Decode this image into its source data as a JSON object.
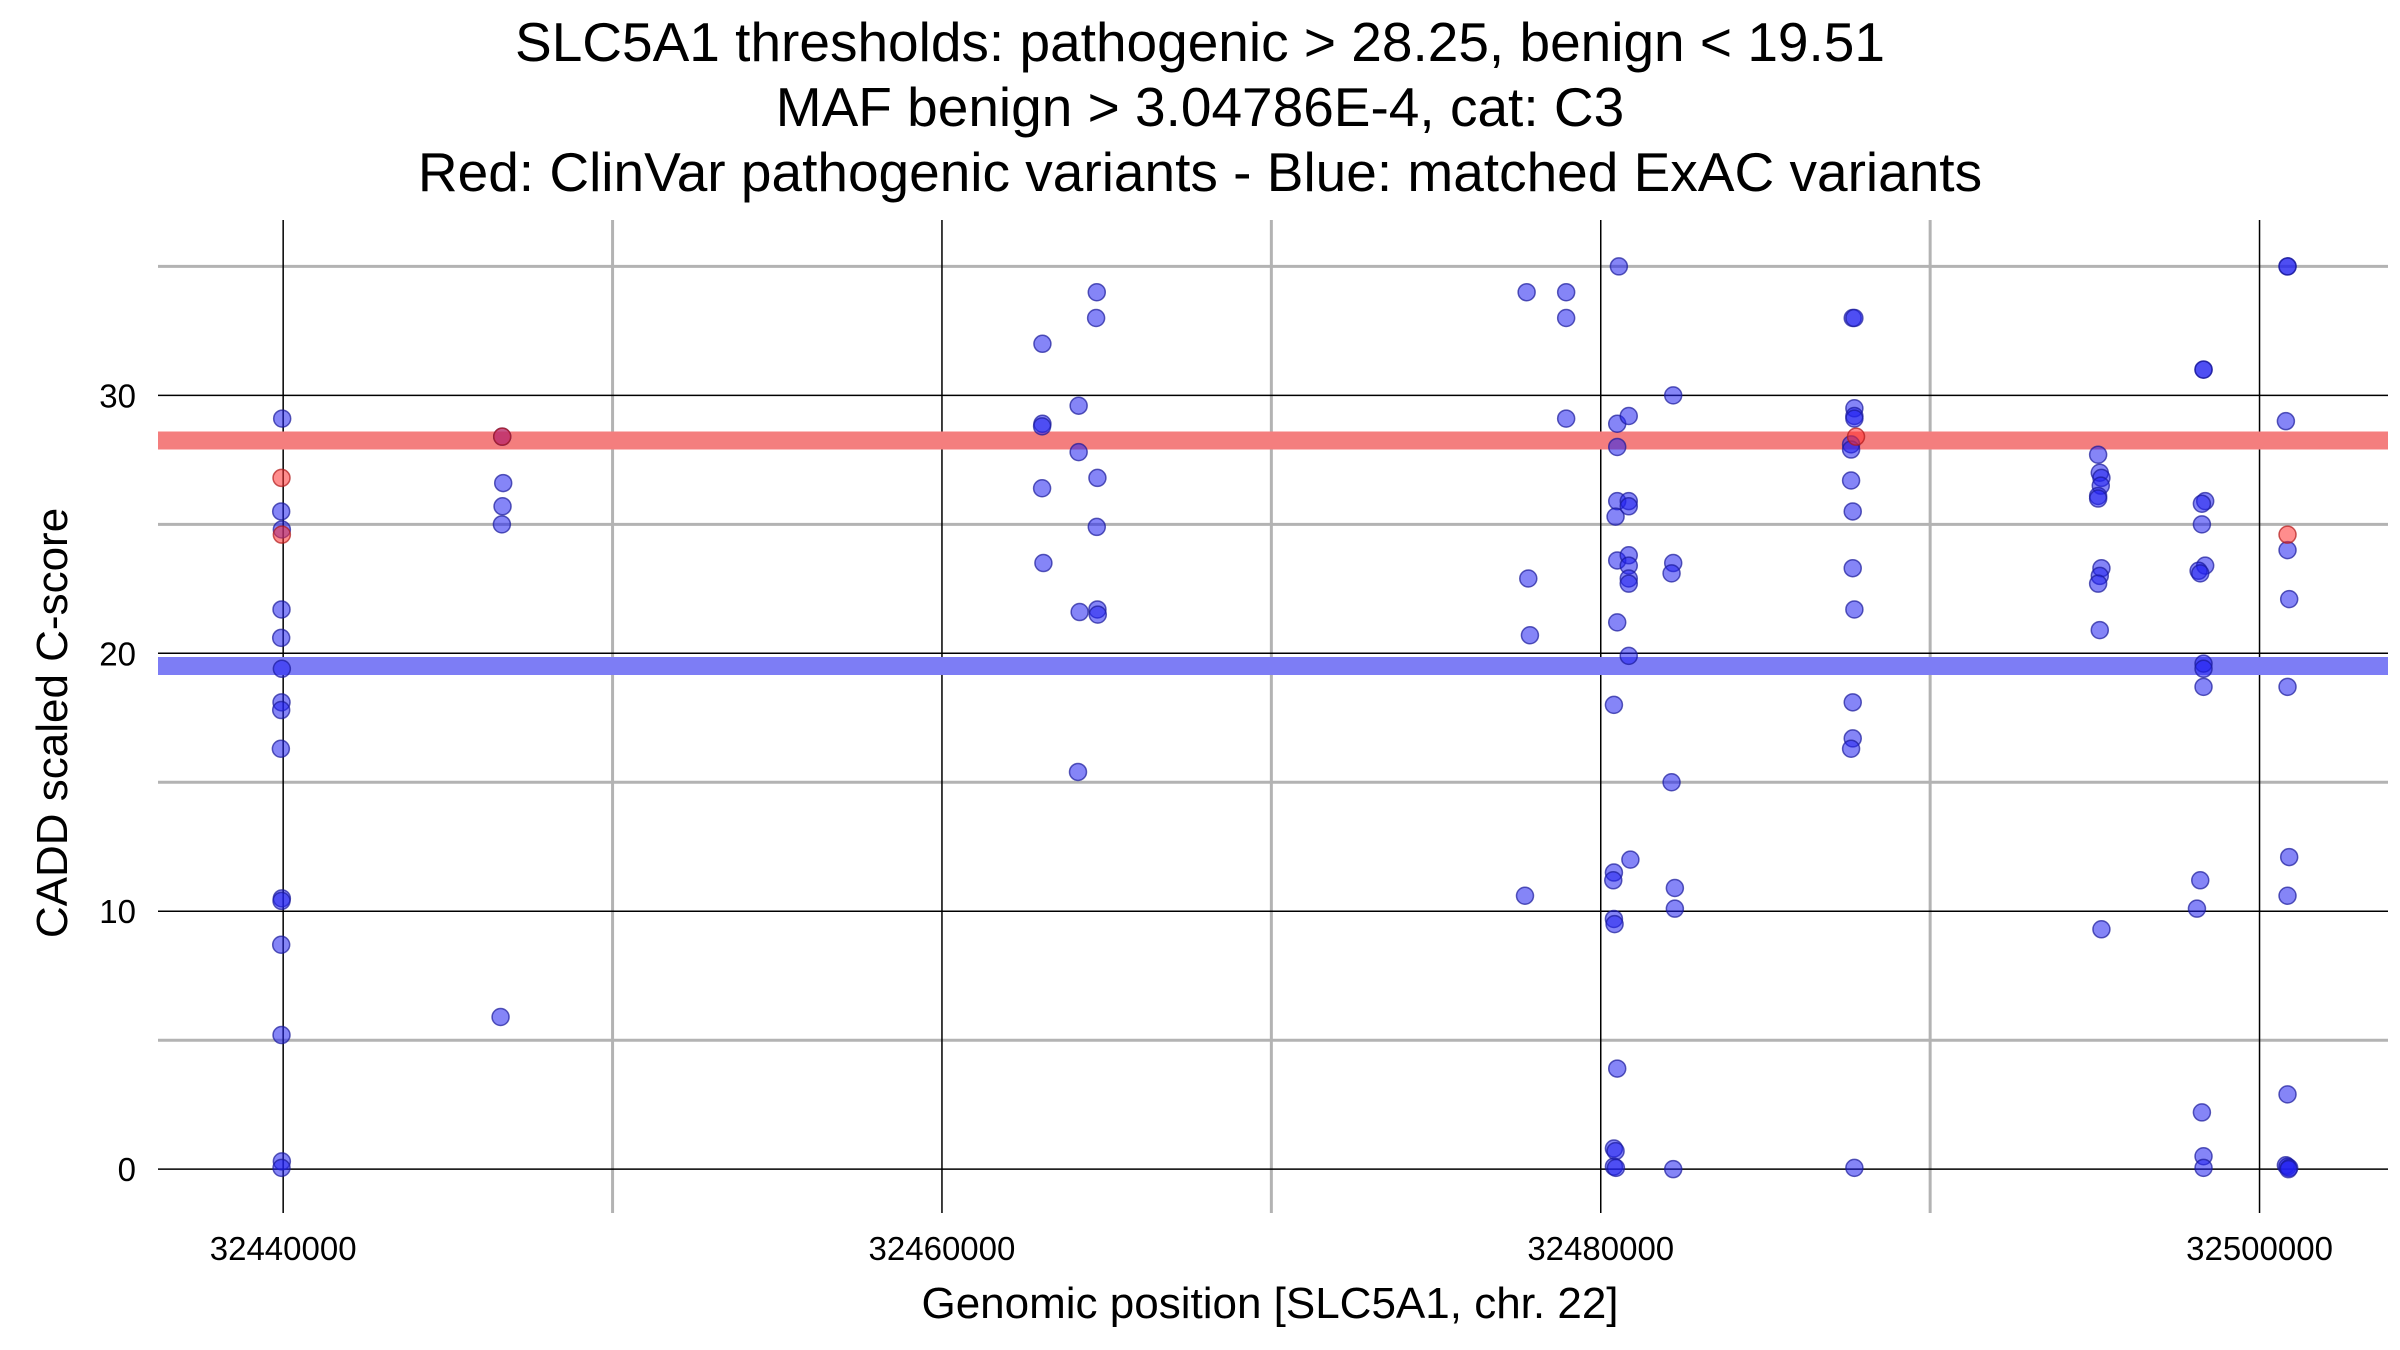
{
  "chart_data": {
    "type": "scatter",
    "title_lines": [
      "SLC5A1 thresholds: pathogenic > 28.25, benign < 19.51",
      "MAF benign > 3.04786E-4, cat: C3",
      "Red: ClinVar pathogenic variants - Blue: matched ExAC variants"
    ],
    "xlabel": "Genomic position [SLC5A1, chr. 22]",
    "ylabel": "CADD scaled C-score",
    "xlim": [
      32436200,
      32503900
    ],
    "ylim": [
      -1.7,
      36.8
    ],
    "x_major_ticks": [
      32440000,
      32460000,
      32480000,
      32500000
    ],
    "x_minor_ticks": [
      32450000,
      32470000,
      32490000
    ],
    "y_major_ticks": [
      0,
      10,
      20,
      30
    ],
    "y_minor_ticks": [
      5,
      15,
      25,
      35
    ],
    "x_tick_labels": [
      "32440000",
      "32460000",
      "32480000",
      "32500000"
    ],
    "y_tick_labels": [
      "0",
      "10",
      "20",
      "30"
    ],
    "thresholds": [
      {
        "name": "pathogenic",
        "value": 28.25,
        "color": "#f47e7e"
      },
      {
        "name": "benign",
        "value": 19.51,
        "color": "#7d7df5"
      }
    ],
    "colors": {
      "pathogenic_point": "#ff3030",
      "benign_point": "#2020f0",
      "point_stroke": "#1a1a9a",
      "major_grid": "#000000",
      "minor_grid": "#b3b3b3"
    },
    "series": [
      {
        "name": "ClinVar pathogenic variants",
        "color": "#ff3030",
        "points": [
          [
            32439950,
            26.8
          ],
          [
            32439960,
            24.6
          ],
          [
            32446650,
            28.4
          ],
          [
            32487750,
            28.4
          ],
          [
            32500850,
            24.6
          ]
        ]
      },
      {
        "name": "matched ExAC variants",
        "color": "#2020f0",
        "points": [
          [
            32439970,
            29.1
          ],
          [
            32439940,
            25.5
          ],
          [
            32439960,
            24.8
          ],
          [
            32439950,
            21.7
          ],
          [
            32439940,
            20.6
          ],
          [
            32439960,
            19.4
          ],
          [
            32439950,
            18.1
          ],
          [
            32439940,
            17.8
          ],
          [
            32439930,
            16.3
          ],
          [
            32439960,
            10.5
          ],
          [
            32439950,
            10.4
          ],
          [
            32439940,
            8.7
          ],
          [
            32439950,
            5.2
          ],
          [
            32439960,
            0.3
          ],
          [
            32439950,
            0.05
          ],
          [
            32446650,
            28.4
          ],
          [
            32446680,
            26.6
          ],
          [
            32446660,
            25.7
          ],
          [
            32446640,
            25.0
          ],
          [
            32446600,
            5.9
          ],
          [
            32463050,
            32.0
          ],
          [
            32463050,
            28.9
          ],
          [
            32463040,
            28.8
          ],
          [
            32463040,
            26.4
          ],
          [
            32463080,
            23.5
          ],
          [
            32464150,
            29.6
          ],
          [
            32464150,
            27.8
          ],
          [
            32464180,
            21.6
          ],
          [
            32464130,
            15.4
          ],
          [
            32464700,
            34.0
          ],
          [
            32464680,
            33.0
          ],
          [
            32464720,
            26.8
          ],
          [
            32464700,
            24.9
          ],
          [
            32464720,
            21.7
          ],
          [
            32464730,
            21.5
          ],
          [
            32477750,
            34.0
          ],
          [
            32477800,
            22.9
          ],
          [
            32477850,
            20.7
          ],
          [
            32477700,
            10.6
          ],
          [
            32478950,
            34.0
          ],
          [
            32478950,
            33.0
          ],
          [
            32478950,
            29.1
          ],
          [
            32480550,
            35.0
          ],
          [
            32480500,
            28.9
          ],
          [
            32480500,
            28.0
          ],
          [
            32480500,
            25.9
          ],
          [
            32480450,
            25.3
          ],
          [
            32480500,
            23.6
          ],
          [
            32480500,
            21.2
          ],
          [
            32480400,
            18.0
          ],
          [
            32480400,
            11.5
          ],
          [
            32480380,
            11.2
          ],
          [
            32480400,
            9.7
          ],
          [
            32480420,
            9.5
          ],
          [
            32480500,
            3.9
          ],
          [
            32480400,
            0.8
          ],
          [
            32480450,
            0.7
          ],
          [
            32480400,
            0.1
          ],
          [
            32480460,
            0.05
          ],
          [
            32480850,
            29.2
          ],
          [
            32480850,
            25.9
          ],
          [
            32480850,
            25.7
          ],
          [
            32480850,
            23.8
          ],
          [
            32480850,
            23.4
          ],
          [
            32480850,
            22.9
          ],
          [
            32480850,
            22.7
          ],
          [
            32480850,
            19.9
          ],
          [
            32480900,
            12.0
          ],
          [
            32482200,
            30.0
          ],
          [
            32482200,
            23.5
          ],
          [
            32482150,
            23.1
          ],
          [
            32482150,
            15.0
          ],
          [
            32482250,
            10.9
          ],
          [
            32482250,
            10.1
          ],
          [
            32482200,
            0.0
          ],
          [
            32487650,
            33.0
          ],
          [
            32487700,
            33.0
          ],
          [
            32487700,
            29.5
          ],
          [
            32487700,
            29.2
          ],
          [
            32487700,
            29.1
          ],
          [
            32487600,
            28.1
          ],
          [
            32487600,
            27.9
          ],
          [
            32487600,
            26.7
          ],
          [
            32487650,
            25.5
          ],
          [
            32487650,
            23.3
          ],
          [
            32487700,
            21.7
          ],
          [
            32487650,
            18.1
          ],
          [
            32487650,
            16.7
          ],
          [
            32487600,
            16.3
          ],
          [
            32487700,
            0.05
          ],
          [
            32495100,
            27.7
          ],
          [
            32495150,
            27.0
          ],
          [
            32495200,
            26.8
          ],
          [
            32495180,
            26.5
          ],
          [
            32495100,
            26.1
          ],
          [
            32495100,
            26.0
          ],
          [
            32495200,
            23.3
          ],
          [
            32495150,
            23.0
          ],
          [
            32495100,
            22.7
          ],
          [
            32495150,
            20.9
          ],
          [
            32495200,
            9.3
          ],
          [
            32498300,
            31.0
          ],
          [
            32498300,
            31.0
          ],
          [
            32498350,
            25.9
          ],
          [
            32498250,
            25.8
          ],
          [
            32498250,
            25.0
          ],
          [
            32498350,
            23.4
          ],
          [
            32498150,
            23.2
          ],
          [
            32498200,
            23.1
          ],
          [
            32498300,
            19.6
          ],
          [
            32498300,
            19.4
          ],
          [
            32498300,
            18.7
          ],
          [
            32498200,
            11.2
          ],
          [
            32498100,
            10.1
          ],
          [
            32498250,
            2.2
          ],
          [
            32498300,
            0.5
          ],
          [
            32498300,
            0.05
          ],
          [
            32500850,
            35.0
          ],
          [
            32500850,
            35.0
          ],
          [
            32500800,
            29.0
          ],
          [
            32500850,
            24.0
          ],
          [
            32500900,
            22.1
          ],
          [
            32500850,
            18.7
          ],
          [
            32500900,
            12.1
          ],
          [
            32500850,
            10.6
          ],
          [
            32500850,
            2.9
          ],
          [
            32500800,
            0.15
          ],
          [
            32500850,
            0.1
          ],
          [
            32500900,
            0.05
          ],
          [
            32500880,
            0.0
          ]
        ]
      }
    ]
  }
}
